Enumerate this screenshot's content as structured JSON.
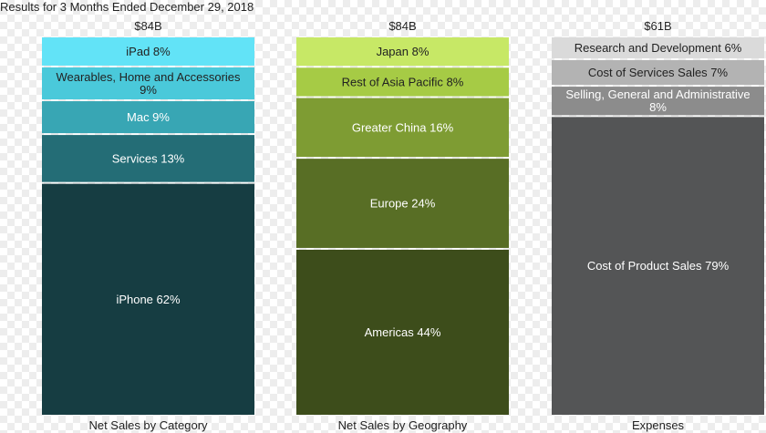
{
  "chart_title": "Results for 3 Months Ended December 29, 2018",
  "chart_data": {
    "type": "bar",
    "stacked": true,
    "normalized": true,
    "categories": [
      "Net Sales by Category",
      "Net Sales by Geography",
      "Expenses"
    ],
    "totals": [
      "$84B",
      "$84B",
      "$61B"
    ],
    "grid": false,
    "columns": [
      {
        "name": "Net Sales by Category",
        "total": "$84B",
        "segments": [
          {
            "label": "iPad 8%",
            "value": 8,
            "color": "#62E3F7",
            "text_color": "#222222"
          },
          {
            "label": "Wearables, Home and Accessories 9%",
            "label_lines": [
              "Wearables, Home and Accessories",
              "9%"
            ],
            "value": 9,
            "color": "#4AC9DA",
            "text_color": "#222222"
          },
          {
            "label": "Mac 9%",
            "value": 9,
            "color": "#38A6B4",
            "text_color": "#ffffff"
          },
          {
            "label": "Services 13%",
            "value": 13,
            "color": "#246D76",
            "text_color": "#ffffff"
          },
          {
            "label": "iPhone 62%",
            "value": 62,
            "color": "#163D42",
            "text_color": "#ffffff"
          }
        ]
      },
      {
        "name": "Net Sales by Geography",
        "total": "$84B",
        "segments": [
          {
            "label": "Japan 8%",
            "value": 8,
            "color": "#C7E866",
            "text_color": "#222222"
          },
          {
            "label": "Rest of Asia Pacific 8%",
            "value": 8,
            "color": "#A6CB45",
            "text_color": "#222222"
          },
          {
            "label": "Greater China 16%",
            "value": 16,
            "color": "#7E9C33",
            "text_color": "#ffffff"
          },
          {
            "label": "Europe 24%",
            "value": 24,
            "color": "#586E25",
            "text_color": "#ffffff"
          },
          {
            "label": "Americas 44%",
            "value": 44,
            "color": "#3D4D1B",
            "text_color": "#ffffff"
          }
        ]
      },
      {
        "name": "Expenses",
        "total": "$61B",
        "segments": [
          {
            "label": "Research and Development 6%",
            "value": 6,
            "color": "#DADADA",
            "text_color": "#222222"
          },
          {
            "label": "Cost of Services Sales 7%",
            "value": 7,
            "color": "#B3B3B3",
            "text_color": "#222222"
          },
          {
            "label": "Selling, General and Administrative 8%",
            "label_lines": [
              "Selling, General and Administrative",
              "8%"
            ],
            "value": 8,
            "color": "#8C8C8C",
            "text_color": "#ffffff"
          },
          {
            "label": "Cost of Product Sales 79%",
            "value": 79,
            "color": "#545556",
            "text_color": "#ffffff"
          }
        ]
      }
    ]
  }
}
